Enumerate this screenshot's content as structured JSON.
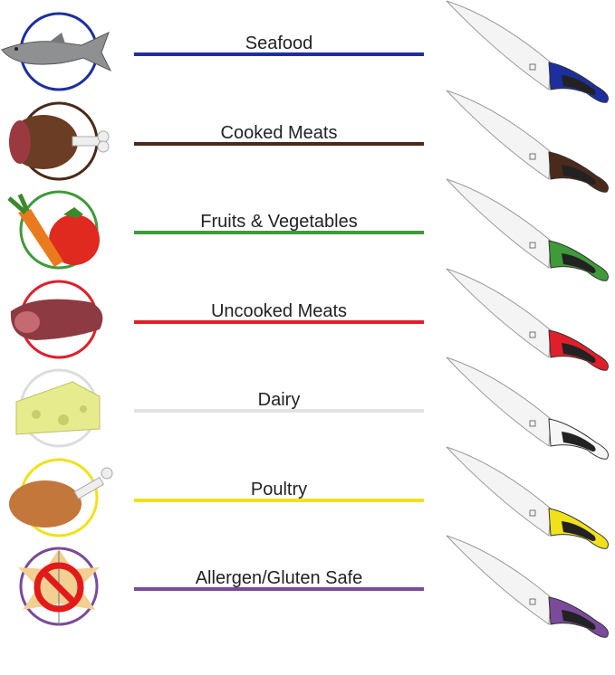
{
  "rows": [
    {
      "label": "Seafood",
      "color": "#1d2f9e",
      "icon": "fish-icon"
    },
    {
      "label": "Cooked Meats",
      "color": "#4a2a1a",
      "icon": "ham-icon"
    },
    {
      "label": "Fruits & Vegetables",
      "color": "#3f9a3a",
      "icon": "vegetables-icon"
    },
    {
      "label": "Uncooked Meats",
      "color": "#e01f2b",
      "icon": "steak-icon"
    },
    {
      "label": "Dairy",
      "color": "#e2e2e2",
      "icon": "cheese-icon"
    },
    {
      "label": "Poultry",
      "color": "#f1e11a",
      "icon": "poultry-icon"
    },
    {
      "label": "Allergen/Gluten Safe",
      "color": "#7b4a9a",
      "icon": "gluten-free-icon"
    }
  ]
}
